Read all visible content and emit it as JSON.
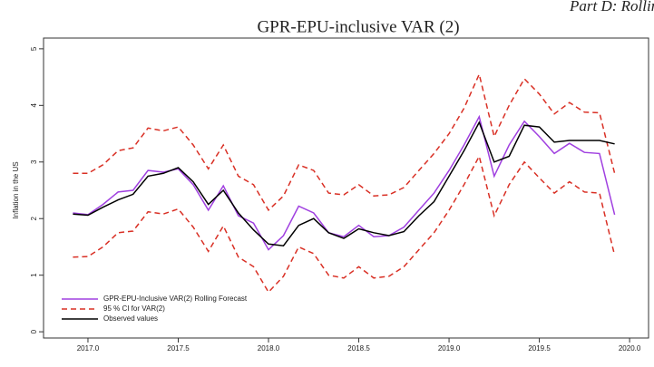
{
  "header_note": "Part D: Rolling",
  "chart_data": {
    "type": "line",
    "title": "GPR-EPU-inclusive VAR (2)",
    "y_label": "Inflation in the US",
    "x": [
      2016.917,
      2017.0,
      2017.083,
      2017.167,
      2017.25,
      2017.333,
      2017.417,
      2017.5,
      2017.583,
      2017.667,
      2017.75,
      2017.833,
      2017.917,
      2018.0,
      2018.083,
      2018.167,
      2018.25,
      2018.333,
      2018.417,
      2018.5,
      2018.583,
      2018.667,
      2018.75,
      2018.833,
      2018.917,
      2019.0,
      2019.083,
      2019.167,
      2019.25,
      2019.333,
      2019.417,
      2019.5,
      2019.583,
      2019.667,
      2019.75,
      2019.833,
      2019.917
    ],
    "series": [
      {
        "name": "GPR-EPU-Inclusive VAR(2) Rolling Forecast",
        "color": "#a040e0",
        "linestyle": "solid",
        "values": [
          2.1,
          2.07,
          2.25,
          2.47,
          2.5,
          2.85,
          2.82,
          2.88,
          2.6,
          2.15,
          2.58,
          2.05,
          1.92,
          1.45,
          1.7,
          2.22,
          2.1,
          1.75,
          1.68,
          1.88,
          1.68,
          1.7,
          1.85,
          2.15,
          2.45,
          2.85,
          3.3,
          3.8,
          2.75,
          3.3,
          3.72,
          3.45,
          3.15,
          3.33,
          3.17,
          3.15,
          2.07
        ]
      },
      {
        "name": "95 % CI for VAR(2)",
        "color": "#d93025",
        "linestyle": "dashed",
        "upper": [
          2.8,
          2.8,
          2.95,
          3.2,
          3.25,
          3.6,
          3.55,
          3.62,
          3.3,
          2.88,
          3.3,
          2.75,
          2.6,
          2.15,
          2.4,
          2.95,
          2.85,
          2.45,
          2.42,
          2.6,
          2.4,
          2.42,
          2.55,
          2.85,
          3.15,
          3.5,
          3.95,
          4.55,
          3.45,
          4.0,
          4.47,
          4.2,
          3.85,
          4.05,
          3.88,
          3.87,
          2.8
        ],
        "lower": [
          1.32,
          1.33,
          1.5,
          1.75,
          1.78,
          2.12,
          2.08,
          2.17,
          1.85,
          1.42,
          1.87,
          1.32,
          1.15,
          0.7,
          0.98,
          1.5,
          1.38,
          1.0,
          0.95,
          1.15,
          0.95,
          0.98,
          1.15,
          1.45,
          1.75,
          2.15,
          2.6,
          3.1,
          2.05,
          2.6,
          3.0,
          2.72,
          2.45,
          2.65,
          2.47,
          2.45,
          1.35
        ]
      },
      {
        "name": "Observed values",
        "color": "#000000",
        "linestyle": "solid",
        "values": [
          2.08,
          2.06,
          2.2,
          2.33,
          2.43,
          2.75,
          2.8,
          2.9,
          2.65,
          2.25,
          2.5,
          2.1,
          1.8,
          1.55,
          1.52,
          1.88,
          2.0,
          1.75,
          1.65,
          1.82,
          1.75,
          1.7,
          1.77,
          2.05,
          2.3,
          2.75,
          3.2,
          3.7,
          3.0,
          3.1,
          3.65,
          3.62,
          3.35,
          3.38,
          3.38,
          3.38,
          3.32
        ]
      }
    ],
    "xlim": [
      2016.754,
      2020.105
    ],
    "xticks": [
      {
        "value": 2017,
        "label": "2017.0"
      },
      {
        "value": 2017.5,
        "label": "2017.5"
      },
      {
        "value": 2018,
        "label": "2018.0"
      },
      {
        "value": 2018.5,
        "label": "2018.5"
      },
      {
        "value": 2019,
        "label": "2019.0"
      },
      {
        "value": 2019.5,
        "label": "2019.5"
      },
      {
        "value": 2020,
        "label": "2020.0"
      }
    ],
    "ylim": [
      -0.11,
      5.19
    ],
    "yticks": [
      0,
      1,
      2,
      3,
      4,
      5
    ],
    "legend": "bottom-left"
  }
}
